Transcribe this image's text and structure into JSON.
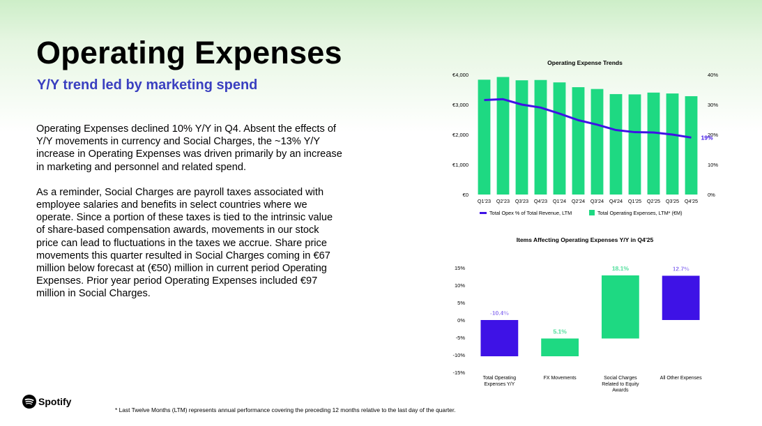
{
  "slide": {
    "title": "Operating Expenses",
    "subtitle": "Y/Y trend led by marketing spend",
    "paragraphs": [
      "Operating Expenses declined 10% Y/Y in Q4. Absent the effects of Y/Y movements in currency and Social Charges, the ~13% Y/Y increase in Operating Expenses was driven primarily by an increase in marketing and personnel and related spend.",
      "As a reminder, Social Charges are payroll taxes associated with employee salaries and benefits in select countries where we operate. Since a portion of these taxes is tied to the intrinsic value of share-based compensation awards, movements in our stock price can lead to fluctuations in the taxes we accrue. Share price movements this quarter resulted in Social Charges coming in €67 million below forecast at (€50) million in current period Operating Expenses. Prior year period Operating Expenses included €97 million in Social Charges."
    ],
    "brand": "Spotify",
    "footnote": "* Last Twelve Months (LTM) represents annual performance covering the preceding 12 months relative to the last day of the quarter."
  },
  "colors": {
    "green": "#1ed982",
    "purple": "#3e12e6",
    "subtitle_blue": "#3a3fc0"
  },
  "chart_data": [
    {
      "type": "bar",
      "title": "Operating Expense Trends",
      "categories": [
        "Q1'23",
        "Q2'23",
        "Q3'23",
        "Q4'23",
        "Q1'24",
        "Q2'24",
        "Q3'24",
        "Q4'24",
        "Q1'25",
        "Q2'25",
        "Q3'25",
        "Q4'25"
      ],
      "series": [
        {
          "name": "Total Operating Expenses, LTM* (€M)",
          "type": "bar",
          "axis": "left",
          "values": [
            3830,
            3920,
            3810,
            3820,
            3740,
            3580,
            3520,
            3350,
            3340,
            3400,
            3370,
            3280
          ]
        },
        {
          "name": "Total Opex % of Total Revenue, LTM",
          "type": "line",
          "axis": "right",
          "values": [
            31.5,
            31.8,
            30.0,
            29.0,
            27.0,
            24.8,
            23.3,
            21.5,
            20.8,
            20.7,
            20.0,
            19.0
          ],
          "end_label": "19%"
        }
      ],
      "y_left": {
        "ticks": [
          "€0",
          "€1,000",
          "€2,000",
          "€3,000",
          "€4,000"
        ],
        "ylim": [
          0,
          4000
        ]
      },
      "y_right": {
        "ticks": [
          "0%",
          "10%",
          "20%",
          "30%",
          "40%"
        ],
        "ylim": [
          0,
          40
        ]
      },
      "legend": "bottom",
      "grid": false
    },
    {
      "type": "bar",
      "subtype": "waterfall",
      "title": "Items Affecting Operating Expenses Y/Y in Q4'25",
      "categories": [
        "Total Operating Expenses Y/Y",
        "FX Movements",
        "Social Charges Related to Equity Awards",
        "All Other Expenses"
      ],
      "bars": [
        {
          "label": "-10.4%",
          "from": -10.4,
          "to": 0,
          "color": "purple"
        },
        {
          "label": "5.1%",
          "from": -10.4,
          "to": -5.3,
          "color": "green"
        },
        {
          "label": "18.1%",
          "from": -5.3,
          "to": 12.8,
          "color": "green"
        },
        {
          "label": "12.7%",
          "from": 0,
          "to": 12.7,
          "color": "purple"
        }
      ],
      "y_ticks": [
        "15%",
        "10%",
        "5%",
        "0%",
        "-5%",
        "-10%",
        "-15%"
      ],
      "ylim": [
        -15,
        15
      ],
      "grid": false
    }
  ]
}
